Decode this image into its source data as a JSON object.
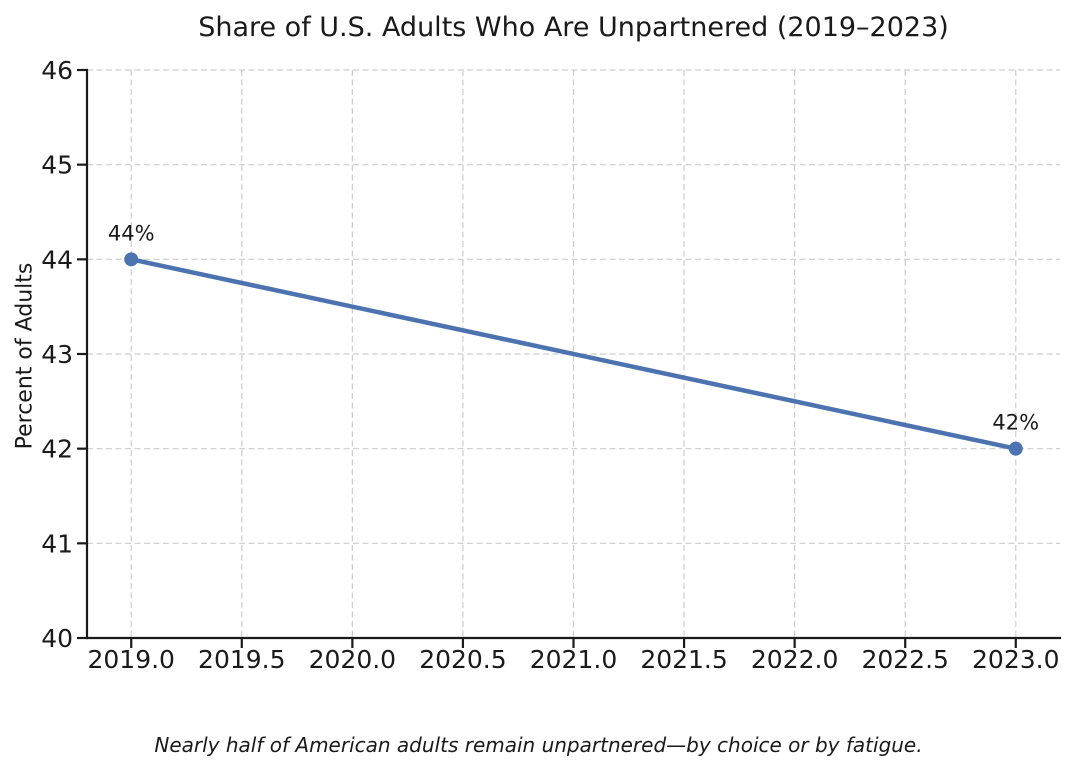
{
  "chart_data": {
    "type": "line",
    "title": "Share of U.S. Adults Who Are Unpartnered (2019–2023)",
    "caption": "Nearly half of American adults remain unpartnered—by choice or by fatigue.",
    "xlabel": "",
    "ylabel": "Percent of Adults",
    "x": [
      2019,
      2023
    ],
    "values": [
      44,
      42
    ],
    "point_labels": [
      "44%",
      "42%"
    ],
    "xlim": [
      2018.8,
      2023.2
    ],
    "ylim": [
      40,
      46
    ],
    "x_ticks": [
      2019.0,
      2019.5,
      2020.0,
      2020.5,
      2021.0,
      2021.5,
      2022.0,
      2022.5,
      2023.0
    ],
    "x_tick_labels": [
      "2019.0",
      "2019.5",
      "2020.0",
      "2020.5",
      "2021.0",
      "2021.5",
      "2022.0",
      "2022.5",
      "2023.0"
    ],
    "y_ticks": [
      40,
      41,
      42,
      43,
      44,
      45,
      46
    ],
    "y_tick_labels": [
      "40",
      "41",
      "42",
      "43",
      "44",
      "45",
      "46"
    ],
    "grid": true,
    "legend": "none",
    "line_color": "#4C72B0",
    "marker_color": "#4C72B0",
    "grid_color": "#cdcdcd",
    "axis_color": "#1a1a1a",
    "background_color": "#ffffff"
  }
}
